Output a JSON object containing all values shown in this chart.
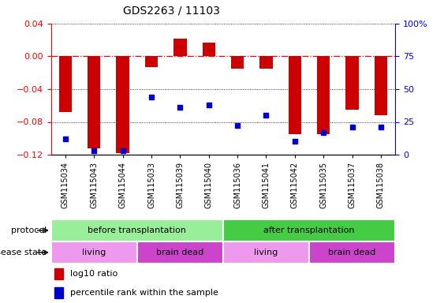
{
  "title": "GDS2263 / 11103",
  "samples": [
    "GSM115034",
    "GSM115043",
    "GSM115044",
    "GSM115033",
    "GSM115039",
    "GSM115040",
    "GSM115036",
    "GSM115041",
    "GSM115042",
    "GSM115035",
    "GSM115037",
    "GSM115038"
  ],
  "log10_ratio": [
    -0.068,
    -0.112,
    -0.118,
    -0.013,
    0.022,
    0.017,
    -0.015,
    -0.015,
    -0.095,
    -0.095,
    -0.065,
    -0.072
  ],
  "percentile_rank": [
    12,
    3,
    3,
    44,
    36,
    38,
    22,
    30,
    10,
    17,
    21,
    21
  ],
  "ylim_left": [
    -0.12,
    0.04
  ],
  "ylim_right": [
    0,
    100
  ],
  "yticks_left": [
    -0.12,
    -0.08,
    -0.04,
    0,
    0.04
  ],
  "yticks_right": [
    0,
    25,
    50,
    75,
    100
  ],
  "bar_color": "#cc0000",
  "dot_color": "#0000cc",
  "protocol_groups": [
    {
      "label": "before transplantation",
      "start": 0,
      "end": 6,
      "color": "#99ee99"
    },
    {
      "label": "after transplantation",
      "start": 6,
      "end": 12,
      "color": "#44cc44"
    }
  ],
  "disease_groups": [
    {
      "label": "living",
      "start": 0,
      "end": 3,
      "color": "#ee99ee"
    },
    {
      "label": "brain dead",
      "start": 3,
      "end": 6,
      "color": "#cc44cc"
    },
    {
      "label": "living",
      "start": 6,
      "end": 9,
      "color": "#ee99ee"
    },
    {
      "label": "brain dead",
      "start": 9,
      "end": 12,
      "color": "#cc44cc"
    }
  ],
  "legend_bar_label": "log10 ratio",
  "legend_dot_label": "percentile rank within the sample",
  "protocol_label": "protocol",
  "disease_label": "disease state"
}
